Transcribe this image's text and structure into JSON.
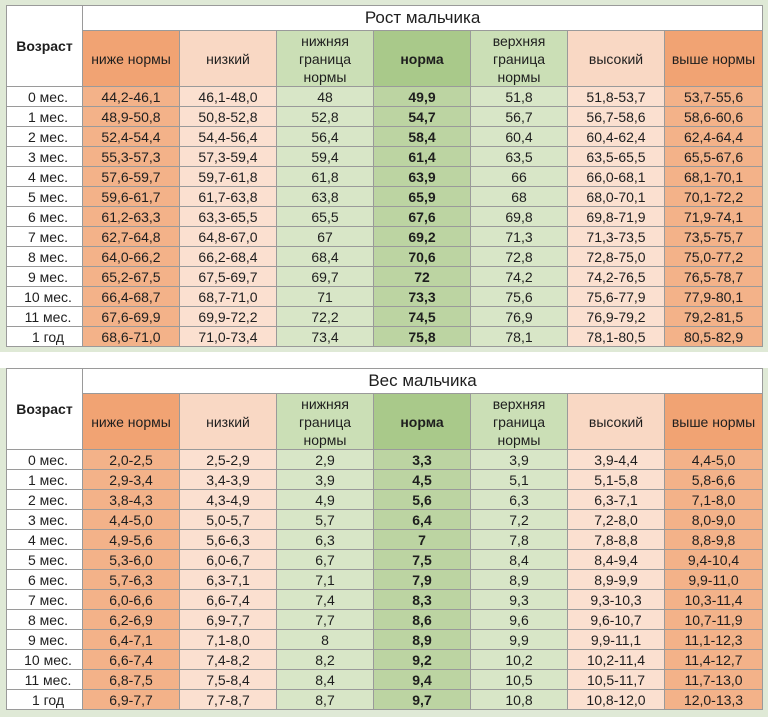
{
  "header": {
    "age": "Возраст",
    "columns": [
      "ниже нормы",
      "низкий",
      "нижняя граница нормы",
      "норма",
      "верхняя граница нормы",
      "высокий",
      "выше нормы"
    ]
  },
  "height_table": {
    "title": "Рост мальчика",
    "rows": [
      [
        "0 мес.",
        "44,2-46,1",
        "46,1-48,0",
        "48",
        "49,9",
        "51,8",
        "51,8-53,7",
        "53,7-55,6"
      ],
      [
        "1 мес.",
        "48,9-50,8",
        "50,8-52,8",
        "52,8",
        "54,7",
        "56,7",
        "56,7-58,6",
        "58,6-60,6"
      ],
      [
        "2 мес.",
        "52,4-54,4",
        "54,4-56,4",
        "56,4",
        "58,4",
        "60,4",
        "60,4-62,4",
        "62,4-64,4"
      ],
      [
        "3 мес.",
        "55,3-57,3",
        "57,3-59,4",
        "59,4",
        "61,4",
        "63,5",
        "63,5-65,5",
        "65,5-67,6"
      ],
      [
        "4 мес.",
        "57,6-59,7",
        "59,7-61,8",
        "61,8",
        "63,9",
        "66",
        "66,0-68,1",
        "68,1-70,1"
      ],
      [
        "5 мес.",
        "59,6-61,7",
        "61,7-63,8",
        "63,8",
        "65,9",
        "68",
        "68,0-70,1",
        "70,1-72,2"
      ],
      [
        "6 мес.",
        "61,2-63,3",
        "63,3-65,5",
        "65,5",
        "67,6",
        "69,8",
        "69,8-71,9",
        "71,9-74,1"
      ],
      [
        "7 мес.",
        "62,7-64,8",
        "64,8-67,0",
        "67",
        "69,2",
        "71,3",
        "71,3-73,5",
        "73,5-75,7"
      ],
      [
        "8 мес.",
        "64,0-66,2",
        "66,2-68,4",
        "68,4",
        "70,6",
        "72,8",
        "72,8-75,0",
        "75,0-77,2"
      ],
      [
        "9 мес.",
        "65,2-67,5",
        "67,5-69,7",
        "69,7",
        "72",
        "74,2",
        "74,2-76,5",
        "76,5-78,7"
      ],
      [
        "10 мес.",
        "66,4-68,7",
        "68,7-71,0",
        "71",
        "73,3",
        "75,6",
        "75,6-77,9",
        "77,9-80,1"
      ],
      [
        "11 мес.",
        "67,6-69,9",
        "69,9-72,2",
        "72,2",
        "74,5",
        "76,9",
        "76,9-79,2",
        "79,2-81,5"
      ],
      [
        "1 год",
        "68,6-71,0",
        "71,0-73,4",
        "73,4",
        "75,8",
        "78,1",
        "78,1-80,5",
        "80,5-82,9"
      ]
    ]
  },
  "weight_table": {
    "title": "Вес мальчика",
    "rows": [
      [
        "0 мес.",
        "2,0-2,5",
        "2,5-2,9",
        "2,9",
        "3,3",
        "3,9",
        "3,9-4,4",
        "4,4-5,0"
      ],
      [
        "1 мес.",
        "2,9-3,4",
        "3,4-3,9",
        "3,9",
        "4,5",
        "5,1",
        "5,1-5,8",
        "5,8-6,6"
      ],
      [
        "2 мес.",
        "3,8-4,3",
        "4,3-4,9",
        "4,9",
        "5,6",
        "6,3",
        "6,3-7,1",
        "7,1-8,0"
      ],
      [
        "3 мес.",
        "4,4-5,0",
        "5,0-5,7",
        "5,7",
        "6,4",
        "7,2",
        "7,2-8,0",
        "8,0-9,0"
      ],
      [
        "4 мес.",
        "4,9-5,6",
        "5,6-6,3",
        "6,3",
        "7",
        "7,8",
        "7,8-8,8",
        "8,8-9,8"
      ],
      [
        "5 мес.",
        "5,3-6,0",
        "6,0-6,7",
        "6,7",
        "7,5",
        "8,4",
        "8,4-9,4",
        "9,4-10,4"
      ],
      [
        "6 мес.",
        "5,7-6,3",
        "6,3-7,1",
        "7,1",
        "7,9",
        "8,9",
        "8,9-9,9",
        "9,9-11,0"
      ],
      [
        "7 мес.",
        "6,0-6,6",
        "6,6-7,4",
        "7,4",
        "8,3",
        "9,3",
        "9,3-10,3",
        "10,3-11,4"
      ],
      [
        "8 мес.",
        "6,2-6,9",
        "6,9-7,7",
        "7,7",
        "8,6",
        "9,6",
        "9,6-10,7",
        "10,7-11,9"
      ],
      [
        "9 мес.",
        "6,4-7,1",
        "7,1-8,0",
        "8",
        "8,9",
        "9,9",
        "9,9-11,1",
        "11,1-12,3"
      ],
      [
        "10 мес.",
        "6,6-7,4",
        "7,4-8,2",
        "8,2",
        "9,2",
        "10,2",
        "10,2-11,4",
        "11,4-12,7"
      ],
      [
        "11 мес.",
        "6,8-7,5",
        "7,5-8,4",
        "8,4",
        "9,4",
        "10,5",
        "10,5-11,7",
        "11,7-13,0"
      ],
      [
        "1 год",
        "6,9-7,7",
        "7,7-8,7",
        "8,7",
        "9,7",
        "10,8",
        "10,8-12,0",
        "12,0-13,3"
      ]
    ]
  }
}
